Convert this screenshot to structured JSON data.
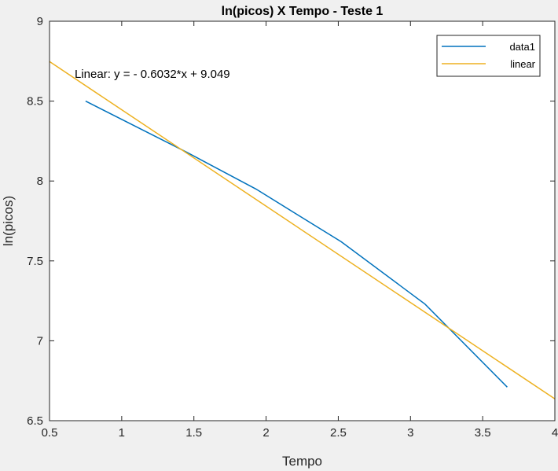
{
  "chart_data": {
    "type": "line",
    "title": "ln(picos) X Tempo - Teste 1",
    "xlabel": "Tempo",
    "ylabel": "ln(picos)",
    "xlim": [
      0.5,
      4
    ],
    "ylim": [
      6.5,
      9
    ],
    "xticks": [
      0.5,
      1,
      1.5,
      2,
      2.5,
      3,
      3.5,
      4
    ],
    "xtick_labels": [
      "0.5",
      "1",
      "1.5",
      "2",
      "2.5",
      "3",
      "3.5",
      "4"
    ],
    "yticks": [
      6.5,
      7,
      7.5,
      8,
      8.5,
      9
    ],
    "ytick_labels": [
      "6.5",
      "7",
      "7.5",
      "8",
      "8.5",
      "9"
    ],
    "grid": false,
    "legend_position": "top-right",
    "series": [
      {
        "name": "data1",
        "color": "#0072BD",
        "x": [
          0.75,
          1.45,
          1.93,
          2.52,
          3.1,
          3.67
        ],
        "y": [
          8.5,
          8.18,
          7.95,
          7.62,
          7.23,
          6.71
        ]
      },
      {
        "name": "linear",
        "color": "#EDB120",
        "fit": {
          "slope": -0.6032,
          "intercept": 9.049
        },
        "x": [
          0.5,
          4
        ],
        "y": [
          8.7474,
          6.6362
        ]
      }
    ],
    "annotation": "Linear:  y = - 0.6032*x + 9.049"
  }
}
